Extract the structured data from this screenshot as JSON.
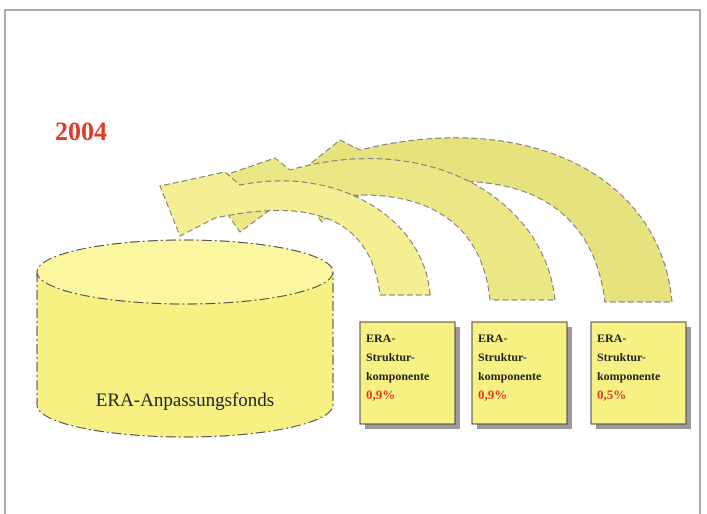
{
  "year": "2004",
  "fund": {
    "label": "ERA-Anpassungsfonds"
  },
  "components": [
    {
      "lines": [
        "ERA-",
        "Struktur-",
        "komponente"
      ],
      "share": "0,9%"
    },
    {
      "lines": [
        "ERA-",
        "Struktur-",
        "komponente"
      ],
      "share": "0,9%"
    },
    {
      "lines": [
        "ERA-",
        "Struktur-",
        "komponente"
      ],
      "share": "0,5%"
    }
  ]
}
